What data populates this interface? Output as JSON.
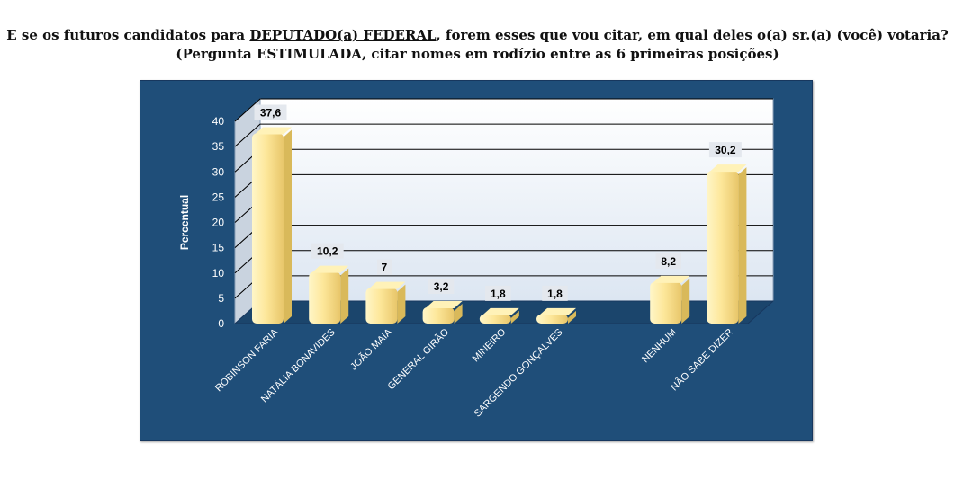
{
  "title": {
    "part1": "E se os futuros candidatos para ",
    "underlined": "DEPUTADO(a) FEDERAL",
    "part2": ", forem esses que vou citar, em qual deles o(a) sr.(a) (você) votaria?",
    "line2": "(Pergunta ESTIMULADA, citar nomes em rodízio entre as 6 primeiras posições)"
  },
  "colors": {
    "panel": "#1f4e79",
    "plot": "#dce6f2",
    "bar": "#fde79a",
    "bar_dark": "#d9b95a",
    "text": "#ffffff"
  },
  "chart_data": {
    "type": "bar",
    "categories": [
      "ROBINSON FARIA",
      "NATÁLIA BONAVIDES",
      "JOÃO MAIA",
      "GENERAL GIRÃO",
      "MINEIRO",
      "SARGENDO GONÇALVES",
      "NENHUM",
      "NÃO SABE DIZER"
    ],
    "values": [
      37.6,
      10.2,
      7,
      3.2,
      1.8,
      1.8,
      8.2,
      30.2
    ],
    "value_labels": [
      "37,6",
      "10,2",
      "7",
      "3,2",
      "1,8",
      "1,8",
      "8,2",
      "30,2"
    ],
    "ylabel": "Percentual",
    "ylim": [
      0,
      40
    ],
    "yticks": [
      "0",
      "5",
      "10",
      "15",
      "20",
      "25",
      "30",
      "35",
      "40"
    ],
    "grid": true
  }
}
